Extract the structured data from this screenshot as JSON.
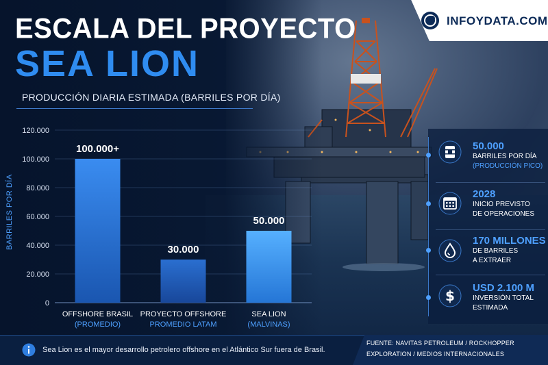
{
  "brand": {
    "name": "INFOYDATA.COM"
  },
  "header": {
    "title_line1": "ESCALA DEL PROYECTO",
    "title_line2": "SEA LION",
    "subtitle": "PRODUCCIÓN DIARIA ESTIMADA (BARRILES POR DÍA)"
  },
  "chart_data": {
    "type": "bar",
    "title": "PRODUCCIÓN DIARIA ESTIMADA (BARRILES POR DÍA)",
    "ylabel": "BARRILES POR DÍA",
    "xlabel": "",
    "ylim": [
      0,
      120000
    ],
    "yticks": [
      0,
      20000,
      40000,
      60000,
      80000,
      100000,
      120000
    ],
    "ytick_labels": [
      "0",
      "20.000",
      "40.000",
      "60.000",
      "80.000",
      "100.000",
      "120.000"
    ],
    "categories": [
      "OFFSHORE BRASIL",
      "PROYECTO OFFSHORE",
      "SEA LION"
    ],
    "category_sublabels": [
      "(PROMEDIO)",
      "PROMEDIO LATAM",
      "(MALVINAS)"
    ],
    "values": [
      100000,
      30000,
      50000
    ],
    "data_labels": [
      "100.000+",
      "30.000",
      "50.000"
    ],
    "colors": [
      "#2a78dc",
      "#1f5fbf",
      "#3f9cf0"
    ],
    "grid": true,
    "legend": "none"
  },
  "stats": [
    {
      "icon": "oil-barrel-icon",
      "value": "50.000",
      "line1": "BARRILES POR DÍA",
      "line2": "(PRODUCCIÓN PICO)"
    },
    {
      "icon": "calendar-icon",
      "value": "2028",
      "line1": "INICIO PREVISTO",
      "line2": "DE OPERACIONES"
    },
    {
      "icon": "oil-drop-icon",
      "value": "170 MILLONES",
      "line1": "DE BARRILES",
      "line2": "A EXTRAER"
    },
    {
      "icon": "dollar-icon",
      "value": "USD 2.100 M",
      "line1": "INVERSIÓN TOTAL",
      "line2": "ESTIMADA"
    }
  ],
  "footer": {
    "note": "Sea Lion es el mayor desarrollo petrolero offshore en el Atlántico Sur fuera de Brasil.",
    "source": "FUENTE: NAVITAS PETROLEUM / ROCKHOPPER EXPLORATION / MEDIOS INTERNACIONALES"
  },
  "colors": {
    "accent": "#2f8cf0",
    "background": "#0a1a33",
    "text": "#ffffff"
  }
}
